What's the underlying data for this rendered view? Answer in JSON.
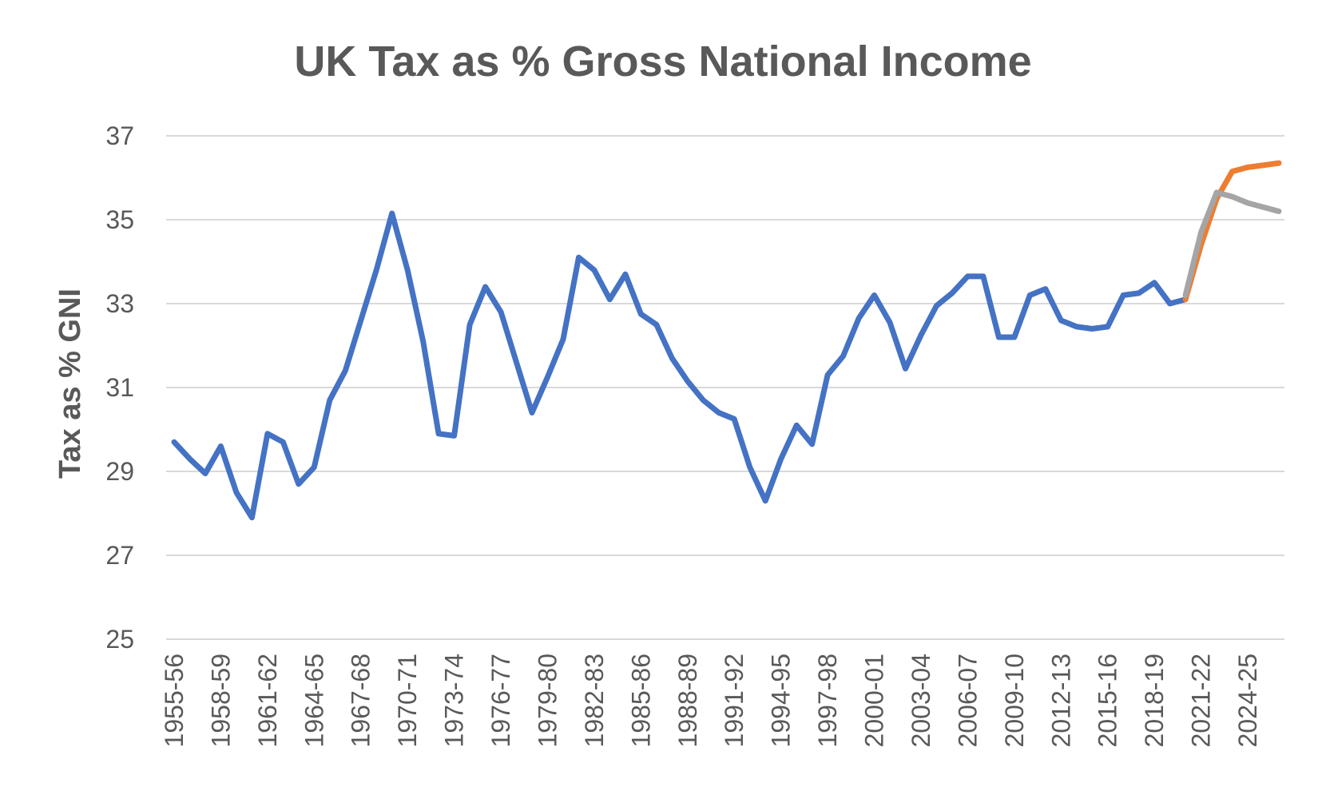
{
  "chart_data": {
    "type": "line",
    "title": "UK Tax as % Gross National Income",
    "xlabel": "",
    "ylabel": "Tax as % GNI",
    "ylim": [
      25,
      37
    ],
    "yticks": [
      25,
      27,
      29,
      31,
      33,
      35,
      37
    ],
    "grid": true,
    "legend": "none",
    "x": [
      "1955-56",
      "1956-57",
      "1957-58",
      "1958-59",
      "1959-60",
      "1960-61",
      "1961-62",
      "1962-63",
      "1963-64",
      "1964-65",
      "1965-66",
      "1966-67",
      "1967-68",
      "1968-69",
      "1969-70",
      "1970-71",
      "1971-72",
      "1972-73",
      "1973-74",
      "1974-75",
      "1975-76",
      "1976-77",
      "1977-78",
      "1978-79",
      "1979-80",
      "1980-81",
      "1981-82",
      "1982-83",
      "1983-84",
      "1984-85",
      "1985-86",
      "1986-87",
      "1987-88",
      "1988-89",
      "1989-90",
      "1990-91",
      "1991-92",
      "1992-93",
      "1993-94",
      "1994-95",
      "1995-96",
      "1996-97",
      "1997-98",
      "1998-99",
      "1999-00",
      "2000-01",
      "2001-02",
      "2002-03",
      "2003-04",
      "2004-05",
      "2005-06",
      "2006-07",
      "2007-08",
      "2008-09",
      "2009-10",
      "2010-11",
      "2011-12",
      "2012-13",
      "2013-14",
      "2014-15",
      "2015-16",
      "2016-17",
      "2017-18",
      "2018-19",
      "2019-20",
      "2020-21",
      "2021-22",
      "2022-23",
      "2023-24",
      "2024-25",
      "2025-26",
      "2026-27"
    ],
    "xtick_labels": [
      "1955-56",
      "1958-59",
      "1961-62",
      "1964-65",
      "1967-68",
      "1970-71",
      "1973-74",
      "1976-77",
      "1979-80",
      "1982-83",
      "1985-86",
      "1988-89",
      "1991-92",
      "1994-95",
      "1997-98",
      "2000-01",
      "2003-04",
      "2006-07",
      "2009-10",
      "2012-13",
      "2015-16",
      "2018-19",
      "2021-22",
      "2024-25"
    ],
    "series": [
      {
        "color": "#4472c4",
        "values": [
          29.7,
          29.3,
          28.95,
          29.6,
          28.5,
          27.9,
          29.9,
          29.7,
          28.7,
          29.1,
          30.7,
          31.4,
          32.6,
          33.8,
          35.15,
          33.8,
          32.1,
          29.9,
          29.85,
          32.5,
          33.4,
          32.8,
          31.6,
          30.4,
          31.25,
          32.15,
          34.1,
          33.8,
          33.1,
          33.7,
          32.75,
          32.5,
          31.7,
          31.15,
          30.7,
          30.4,
          30.25,
          29.1,
          28.3,
          29.3,
          30.1,
          29.65,
          31.3,
          31.75,
          32.65,
          33.2,
          32.55,
          31.45,
          32.25,
          32.95,
          33.25,
          33.65,
          33.65,
          32.2,
          32.2,
          33.2,
          33.35,
          32.6,
          32.45,
          32.4,
          32.45,
          33.2,
          33.25,
          33.5,
          33.0,
          33.1,
          null,
          null,
          null,
          null,
          null,
          null
        ]
      },
      {
        "color": "#ed7d31",
        "values": [
          null,
          null,
          null,
          null,
          null,
          null,
          null,
          null,
          null,
          null,
          null,
          null,
          null,
          null,
          null,
          null,
          null,
          null,
          null,
          null,
          null,
          null,
          null,
          null,
          null,
          null,
          null,
          null,
          null,
          null,
          null,
          null,
          null,
          null,
          null,
          null,
          null,
          null,
          null,
          null,
          null,
          null,
          null,
          null,
          null,
          null,
          null,
          null,
          null,
          null,
          null,
          null,
          null,
          null,
          null,
          null,
          null,
          null,
          null,
          null,
          null,
          null,
          null,
          null,
          null,
          33.1,
          34.4,
          35.5,
          36.15,
          36.25,
          36.3,
          36.35
        ]
      },
      {
        "color": "#a5a5a5",
        "values": [
          null,
          null,
          null,
          null,
          null,
          null,
          null,
          null,
          null,
          null,
          null,
          null,
          null,
          null,
          null,
          null,
          null,
          null,
          null,
          null,
          null,
          null,
          null,
          null,
          null,
          null,
          null,
          null,
          null,
          null,
          null,
          null,
          null,
          null,
          null,
          null,
          null,
          null,
          null,
          null,
          null,
          null,
          null,
          null,
          null,
          null,
          null,
          null,
          null,
          null,
          null,
          null,
          null,
          null,
          null,
          null,
          null,
          null,
          null,
          null,
          null,
          null,
          null,
          null,
          null,
          33.2,
          34.7,
          35.65,
          35.55,
          35.4,
          35.3,
          35.2
        ]
      }
    ]
  }
}
